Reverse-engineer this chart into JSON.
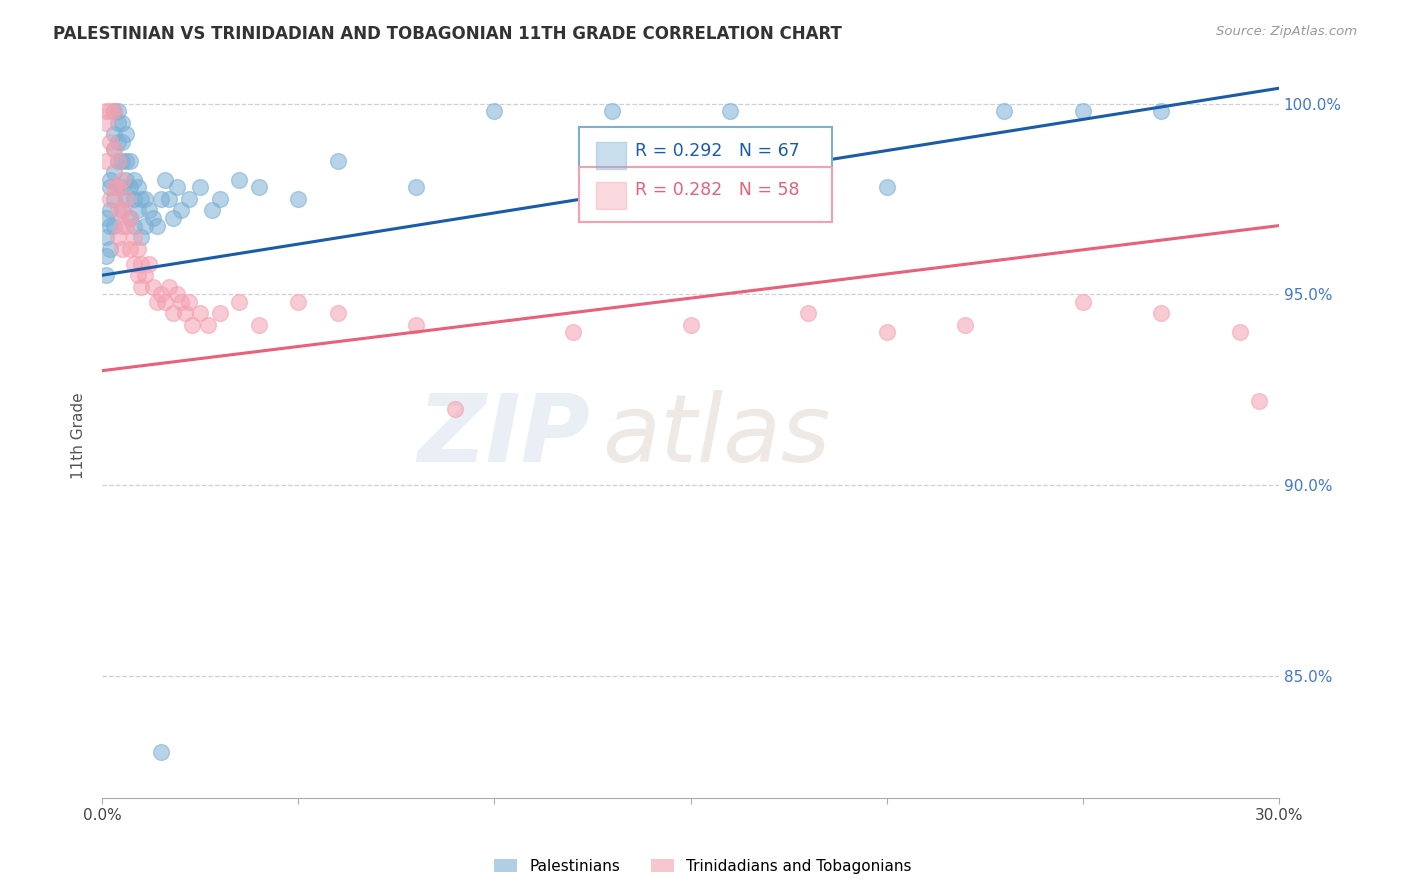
{
  "title": "PALESTINIAN VS TRINIDADIAN AND TOBAGONIAN 11TH GRADE CORRELATION CHART",
  "source": "Source: ZipAtlas.com",
  "ylabel": "11th Grade",
  "xlim": [
    0.0,
    0.3
  ],
  "ylim": [
    0.818,
    1.008
  ],
  "xticks": [
    0.0,
    0.05,
    0.1,
    0.15,
    0.2,
    0.25,
    0.3
  ],
  "xticklabels": [
    "0.0%",
    "",
    "",
    "",
    "",
    "",
    "30.0%"
  ],
  "yticks": [
    0.85,
    0.9,
    0.95,
    1.0
  ],
  "yticklabels": [
    "85.0%",
    "90.0%",
    "95.0%",
    "100.0%"
  ],
  "blue_label": "Palestinians",
  "pink_label": "Trinidadians and Tobagonians",
  "blue_R": 0.292,
  "blue_N": 67,
  "pink_R": 0.282,
  "pink_N": 58,
  "blue_color": "#7BAFD4",
  "pink_color": "#F4A0B0",
  "blue_line_color": "#1A5CA8",
  "pink_line_color": "#E8607A",
  "watermark_zip": "ZIP",
  "watermark_atlas": "atlas",
  "blue_x": [
    0.001,
    0.001,
    0.001,
    0.001,
    0.002,
    0.002,
    0.002,
    0.002,
    0.002,
    0.003,
    0.003,
    0.003,
    0.003,
    0.003,
    0.003,
    0.004,
    0.004,
    0.004,
    0.004,
    0.004,
    0.005,
    0.005,
    0.005,
    0.005,
    0.005,
    0.006,
    0.006,
    0.006,
    0.006,
    0.007,
    0.007,
    0.007,
    0.008,
    0.008,
    0.008,
    0.009,
    0.009,
    0.01,
    0.01,
    0.011,
    0.011,
    0.012,
    0.013,
    0.014,
    0.015,
    0.016,
    0.017,
    0.018,
    0.019,
    0.02,
    0.022,
    0.025,
    0.028,
    0.03,
    0.035,
    0.04,
    0.05,
    0.06,
    0.08,
    0.1,
    0.13,
    0.16,
    0.2,
    0.23,
    0.25,
    0.27,
    0.015
  ],
  "blue_y": [
    0.96,
    0.965,
    0.955,
    0.97,
    0.968,
    0.972,
    0.978,
    0.962,
    0.98,
    0.975,
    0.968,
    0.982,
    0.988,
    0.992,
    0.998,
    0.978,
    0.985,
    0.99,
    0.995,
    0.998,
    0.972,
    0.978,
    0.985,
    0.99,
    0.995,
    0.975,
    0.98,
    0.985,
    0.992,
    0.97,
    0.978,
    0.985,
    0.968,
    0.975,
    0.98,
    0.972,
    0.978,
    0.965,
    0.975,
    0.968,
    0.975,
    0.972,
    0.97,
    0.968,
    0.975,
    0.98,
    0.975,
    0.97,
    0.978,
    0.972,
    0.975,
    0.978,
    0.972,
    0.975,
    0.98,
    0.978,
    0.975,
    0.985,
    0.978,
    0.998,
    0.998,
    0.998,
    0.978,
    0.998,
    0.998,
    0.998,
    0.83
  ],
  "pink_x": [
    0.001,
    0.001,
    0.001,
    0.002,
    0.002,
    0.002,
    0.003,
    0.003,
    0.003,
    0.004,
    0.004,
    0.004,
    0.004,
    0.005,
    0.005,
    0.005,
    0.005,
    0.006,
    0.006,
    0.007,
    0.007,
    0.008,
    0.008,
    0.009,
    0.009,
    0.01,
    0.01,
    0.011,
    0.012,
    0.013,
    0.014,
    0.015,
    0.016,
    0.017,
    0.018,
    0.019,
    0.02,
    0.021,
    0.022,
    0.023,
    0.025,
    0.027,
    0.03,
    0.035,
    0.04,
    0.05,
    0.06,
    0.08,
    0.09,
    0.12,
    0.15,
    0.18,
    0.2,
    0.22,
    0.25,
    0.27,
    0.29,
    0.295
  ],
  "pink_y": [
    0.998,
    0.995,
    0.985,
    0.998,
    0.99,
    0.975,
    0.998,
    0.988,
    0.978,
    0.985,
    0.978,
    0.972,
    0.965,
    0.98,
    0.972,
    0.968,
    0.962,
    0.975,
    0.968,
    0.97,
    0.962,
    0.965,
    0.958,
    0.962,
    0.955,
    0.958,
    0.952,
    0.955,
    0.958,
    0.952,
    0.948,
    0.95,
    0.948,
    0.952,
    0.945,
    0.95,
    0.948,
    0.945,
    0.948,
    0.942,
    0.945,
    0.942,
    0.945,
    0.948,
    0.942,
    0.948,
    0.945,
    0.942,
    0.92,
    0.94,
    0.942,
    0.945,
    0.94,
    0.942,
    0.948,
    0.945,
    0.94,
    0.922
  ]
}
